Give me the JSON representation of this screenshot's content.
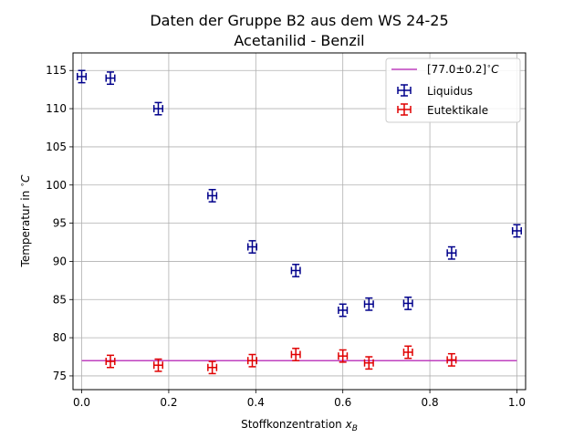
{
  "chart_data": {
    "type": "scatter",
    "title": "Daten der Gruppe B2 aus dem WS 24-25",
    "subtitle": "Acetanilid - Benzil",
    "xlabel": "Stoffkonzentration x_B",
    "ylabel": "Temperatur in °C",
    "xlim": [
      -0.02,
      1.02
    ],
    "ylim": [
      73.2,
      117.3
    ],
    "xticks": [
      0.0,
      0.2,
      0.4,
      0.6,
      0.8,
      1.0
    ],
    "xtick_labels": [
      "0.0",
      "0.2",
      "0.4",
      "0.6",
      "0.8",
      "1.0"
    ],
    "yticks": [
      75,
      80,
      85,
      90,
      95,
      100,
      105,
      110,
      115
    ],
    "ytick_labels": [
      "75",
      "80",
      "85",
      "90",
      "95",
      "100",
      "105",
      "110",
      "115"
    ],
    "grid": true,
    "legend_position": "top-right",
    "hline": {
      "label": "[77.0±0.2]°C",
      "y": 77.0,
      "x_range": [
        0.0,
        1.0
      ],
      "color": "#bf40bf"
    },
    "series": [
      {
        "name": "Liquidus",
        "color": "#00008b",
        "x": [
          0.0,
          0.066,
          0.176,
          0.3,
          0.392,
          0.492,
          0.6,
          0.66,
          0.75,
          0.85,
          1.0
        ],
        "y": [
          114.2,
          114.0,
          110.0,
          98.6,
          91.9,
          88.8,
          83.6,
          84.4,
          84.5,
          91.1,
          94.0
        ],
        "xerr": 0.01,
        "yerr": 0.8
      },
      {
        "name": "Eutektikale",
        "color": "#e00000",
        "x": [
          0.066,
          0.176,
          0.3,
          0.392,
          0.492,
          0.6,
          0.66,
          0.75,
          0.85
        ],
        "y": [
          76.9,
          76.4,
          76.1,
          77.0,
          77.8,
          77.6,
          76.7,
          78.1,
          77.1
        ],
        "xerr": 0.01,
        "yerr": 0.8
      }
    ]
  }
}
